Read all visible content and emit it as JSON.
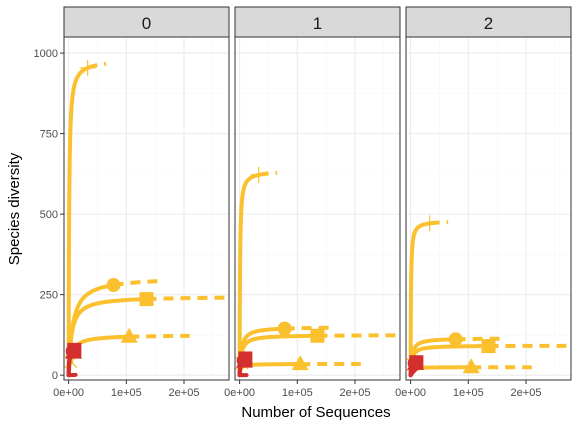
{
  "chart_data": {
    "type": "line",
    "xlabel": "Number of Sequences",
    "ylabel": "Species diversity",
    "facet_labels": [
      "0",
      "1",
      "2"
    ],
    "x_ticks": [
      0,
      100000,
      200000
    ],
    "x_tick_labels": [
      "0e+00",
      "1e+05",
      "2e+05"
    ],
    "y_ticks": [
      0,
      250,
      500,
      750,
      1000
    ],
    "y_tick_labels": [
      "0",
      "250",
      "500",
      "750",
      "1000"
    ],
    "xlim": [
      -8000,
      278000
    ],
    "ylim": [
      -15,
      1050
    ],
    "grid": true,
    "colors": {
      "yellow": "#fbc02d",
      "red": "#d32f2f",
      "panel_border": "#333333",
      "strip_fill": "#d9d9d9",
      "grid_major": "#ebebeb",
      "grid_minor": "#f5f5f5"
    },
    "panels": [
      {
        "facet": "0",
        "series": [
          {
            "color": "#fbc02d",
            "shape": "plus",
            "end_x": 33000,
            "max_y": 980,
            "extrap_to": 65000,
            "k": 900
          },
          {
            "color": "#fbc02d",
            "shape": "circle",
            "end_x": 78000,
            "max_y": 305,
            "extrap_to": 155000,
            "k": 7000
          },
          {
            "color": "#fbc02d",
            "shape": "square",
            "end_x": 135000,
            "max_y": 245,
            "extrap_to": 270000,
            "k": 5000
          },
          {
            "color": "#fbc02d",
            "shape": "triangle",
            "end_x": 105000,
            "max_y": 125,
            "extrap_to": 210000,
            "k": 5000
          },
          {
            "color": "#fbc02d",
            "shape": "cross",
            "end_x": 4000,
            "max_y": 45,
            "extrap_to": 8000,
            "k": 300
          },
          {
            "color": "#d32f2f",
            "shape": "none",
            "end_x": 12000,
            "max_y": 540,
            "extrap_to": 12000,
            "k": 8000000
          },
          {
            "color": "#d32f2f",
            "shape": "square",
            "end_x": 10000,
            "max_y": 88,
            "extrap_to": 16000,
            "k": 1200
          },
          {
            "color": "#d32f2f",
            "shape": "triangle",
            "end_x": 8500,
            "max_y": 80,
            "extrap_to": 14000,
            "k": 1200
          },
          {
            "color": "#d32f2f",
            "shape": "circle",
            "end_x": 7000,
            "max_y": 85,
            "extrap_to": 12000,
            "k": 1000
          }
        ]
      },
      {
        "facet": "1",
        "series": [
          {
            "color": "#fbc02d",
            "shape": "plus",
            "end_x": 33000,
            "max_y": 635,
            "extrap_to": 65000,
            "k": 700
          },
          {
            "color": "#fbc02d",
            "shape": "circle",
            "end_x": 78000,
            "max_y": 150,
            "extrap_to": 155000,
            "k": 3000
          },
          {
            "color": "#fbc02d",
            "shape": "square",
            "end_x": 135000,
            "max_y": 125,
            "extrap_to": 270000,
            "k": 3000
          },
          {
            "color": "#fbc02d",
            "shape": "triangle",
            "end_x": 105000,
            "max_y": 35,
            "extrap_to": 210000,
            "k": 2000
          },
          {
            "color": "#fbc02d",
            "shape": "cross",
            "end_x": 4000,
            "max_y": 40,
            "extrap_to": 8000,
            "k": 300
          },
          {
            "color": "#d32f2f",
            "shape": "none",
            "end_x": 12000,
            "max_y": 225,
            "extrap_to": 12000,
            "k": 12000000
          },
          {
            "color": "#d32f2f",
            "shape": "square",
            "end_x": 10000,
            "max_y": 58,
            "extrap_to": 16000,
            "k": 1200
          },
          {
            "color": "#d32f2f",
            "shape": "triangle",
            "end_x": 8500,
            "max_y": 48,
            "extrap_to": 14000,
            "k": 1200
          },
          {
            "color": "#d32f2f",
            "shape": "circle",
            "end_x": 7000,
            "max_y": 52,
            "extrap_to": 12000,
            "k": 1000
          }
        ]
      },
      {
        "facet": "2",
        "series": [
          {
            "color": "#fbc02d",
            "shape": "plus",
            "end_x": 33000,
            "max_y": 480,
            "extrap_to": 65000,
            "k": 600
          },
          {
            "color": "#fbc02d",
            "shape": "circle",
            "end_x": 78000,
            "max_y": 115,
            "extrap_to": 155000,
            "k": 2500
          },
          {
            "color": "#fbc02d",
            "shape": "square",
            "end_x": 135000,
            "max_y": 92,
            "extrap_to": 270000,
            "k": 2500
          },
          {
            "color": "#fbc02d",
            "shape": "triangle",
            "end_x": 105000,
            "max_y": 25,
            "extrap_to": 210000,
            "k": 2000
          },
          {
            "color": "#fbc02d",
            "shape": "cross",
            "end_x": 4000,
            "max_y": 35,
            "extrap_to": 8000,
            "k": 300
          },
          {
            "color": "#d32f2f",
            "shape": "none",
            "end_x": 9000,
            "max_y": 120,
            "extrap_to": 9000,
            "k": 50000
          },
          {
            "color": "#d32f2f",
            "shape": "square",
            "end_x": 10000,
            "max_y": 45,
            "extrap_to": 16000,
            "k": 1200
          },
          {
            "color": "#d32f2f",
            "shape": "triangle",
            "end_x": 8500,
            "max_y": 40,
            "extrap_to": 14000,
            "k": 1200
          },
          {
            "color": "#d32f2f",
            "shape": "circle",
            "end_x": 7000,
            "max_y": 42,
            "extrap_to": 12000,
            "k": 1000
          }
        ]
      }
    ]
  }
}
